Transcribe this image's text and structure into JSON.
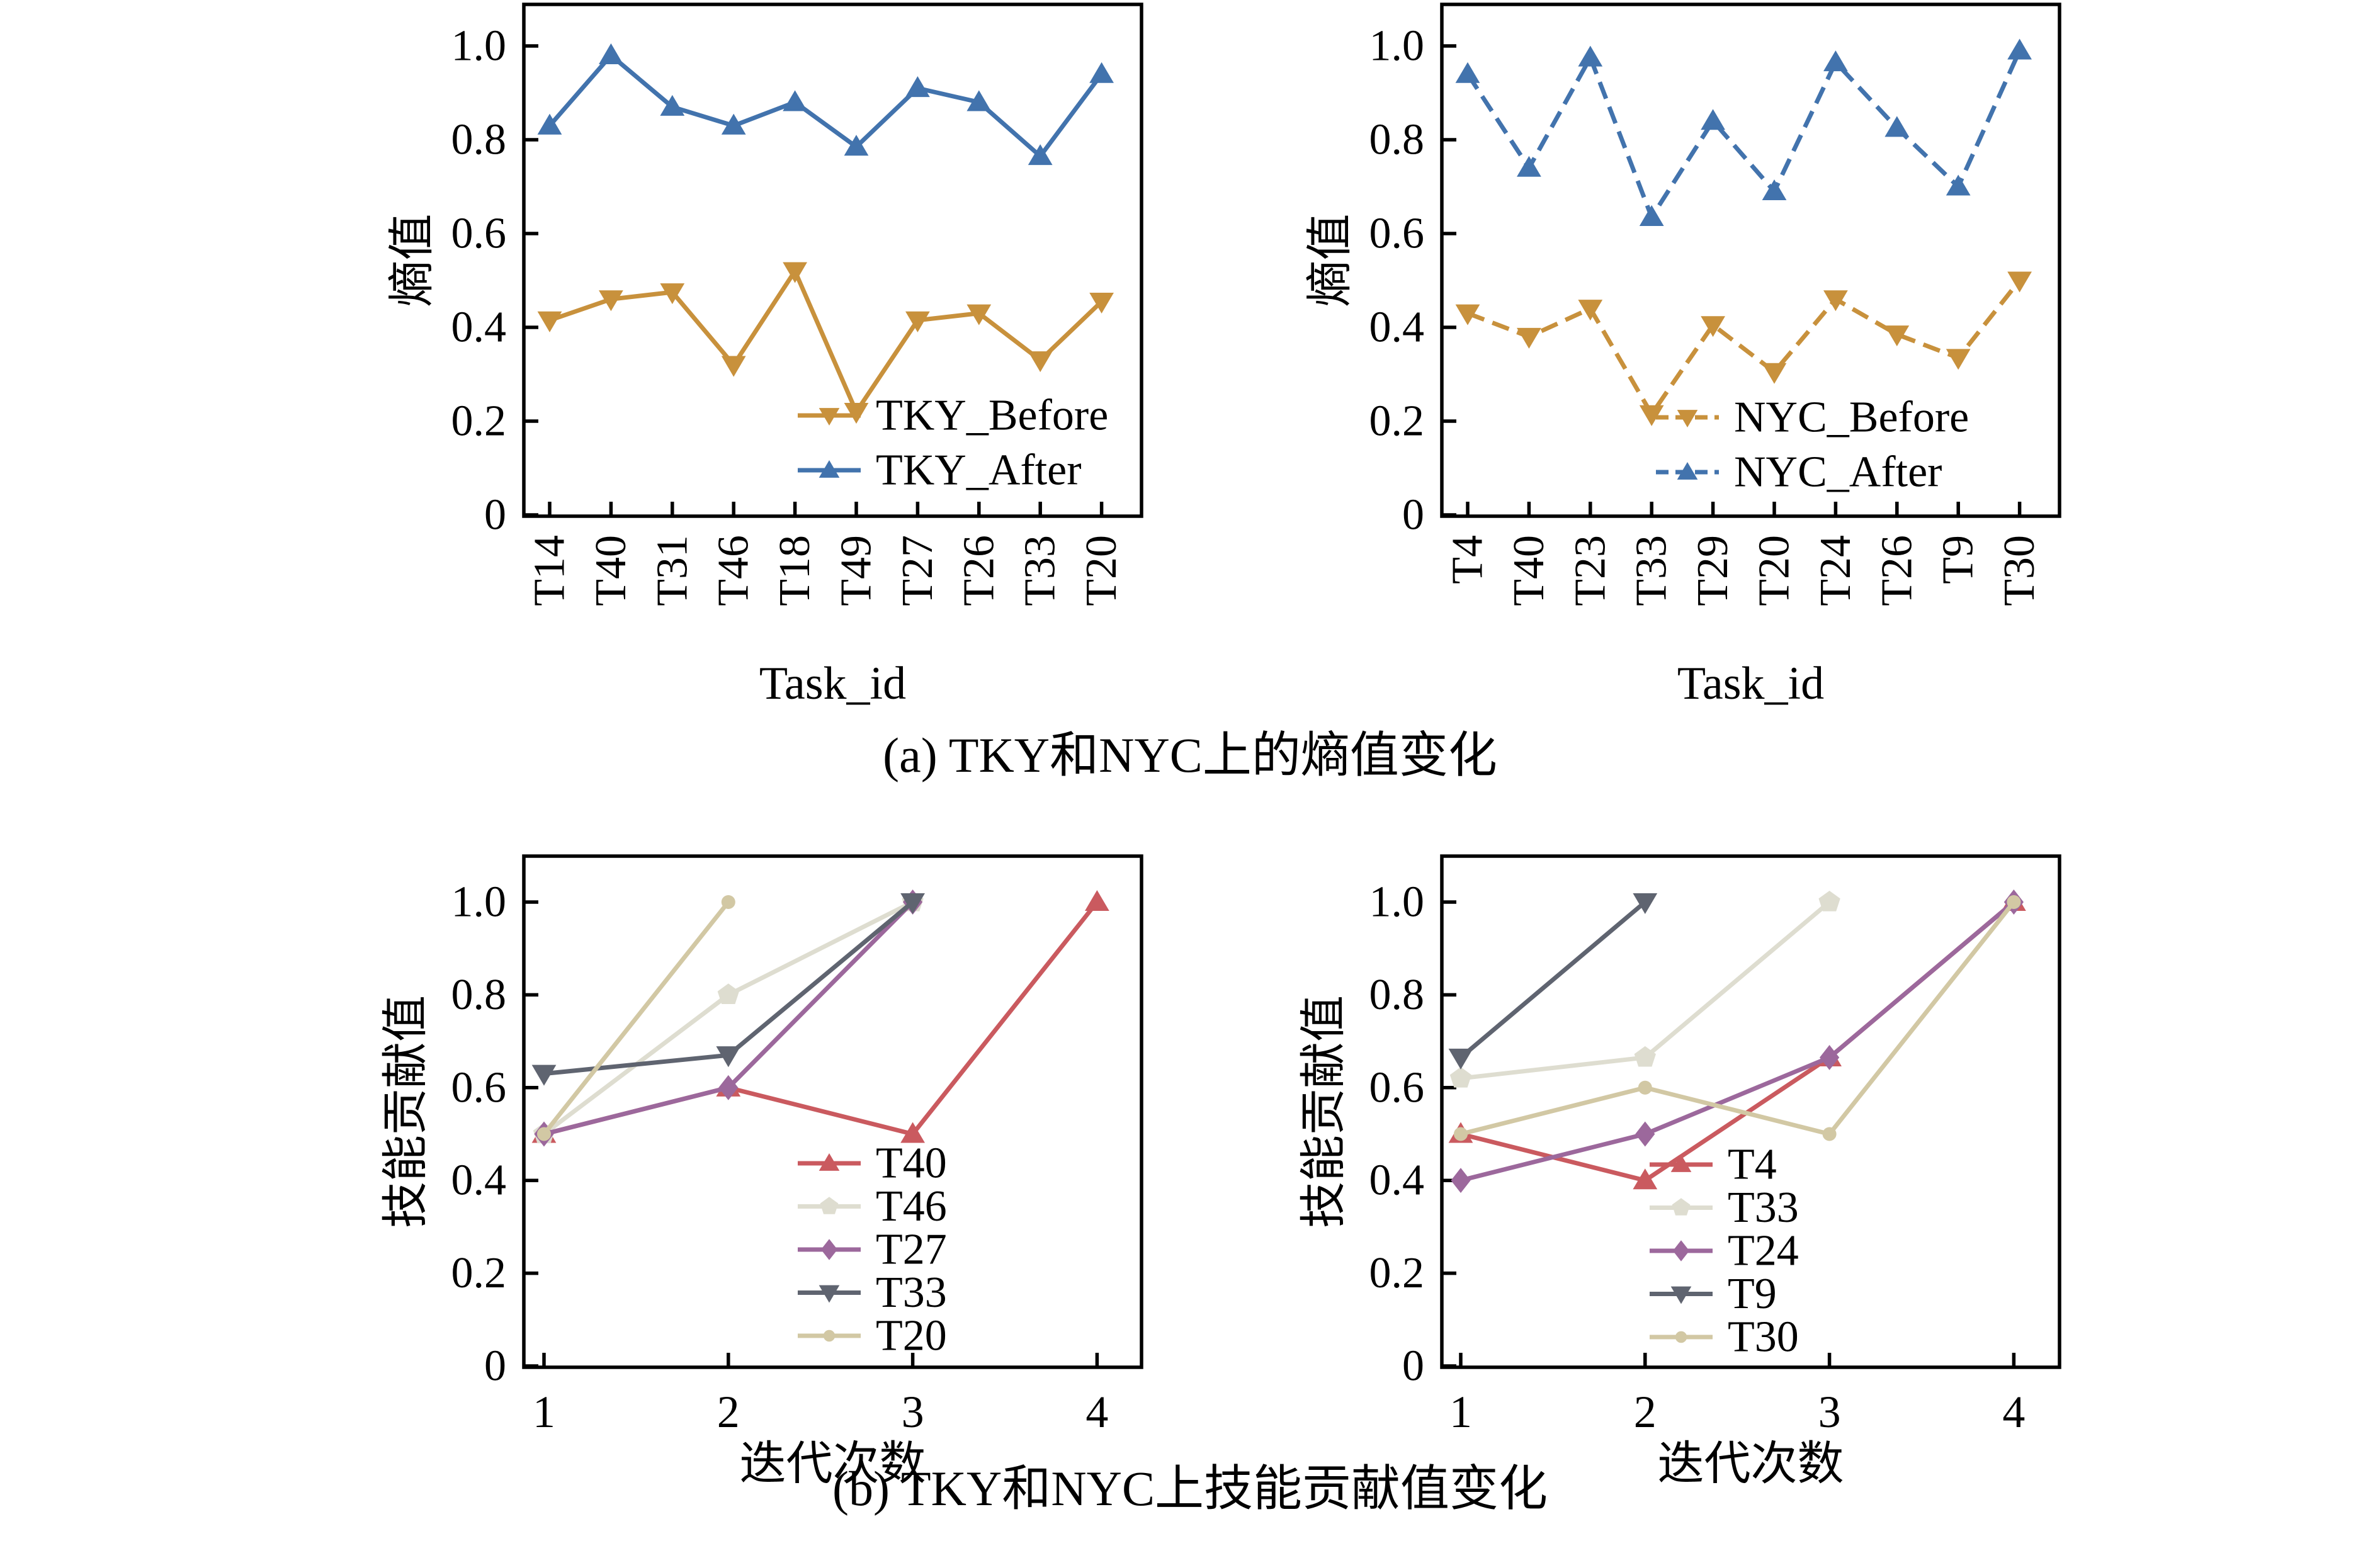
{
  "captions": {
    "a": "(a) TKY和NYC上的熵值变化",
    "b": "(b) TKY和NYC上技能贡献值变化"
  },
  "chart_data": [
    {
      "id": "tky-entropy",
      "type": "line",
      "xlabel": "Task_id",
      "ylabel": "熵值",
      "ylim": [
        0,
        1.09
      ],
      "yticks": [
        0,
        0.2,
        0.4,
        0.6,
        0.8,
        1.0
      ],
      "ytick_labels": [
        "0",
        "0.2",
        "0.4",
        "0.6",
        "0.8",
        "1.0"
      ],
      "categories": [
        "T14",
        "T40",
        "T31",
        "T46",
        "T18",
        "T49",
        "T27",
        "T26",
        "T33",
        "T20"
      ],
      "legend_position": "lower right",
      "grid": false,
      "series": [
        {
          "name": "TKY_Before",
          "color": "#c8913c",
          "marker": "triangle-down",
          "dashed": false,
          "values": [
            0.415,
            0.46,
            0.475,
            0.32,
            0.52,
            0.22,
            0.415,
            0.43,
            0.33,
            0.455
          ]
        },
        {
          "name": "TKY_After",
          "color": "#4273ad",
          "marker": "triangle-up",
          "dashed": false,
          "values": [
            0.83,
            0.98,
            0.87,
            0.83,
            0.88,
            0.785,
            0.91,
            0.88,
            0.765,
            0.94
          ]
        }
      ]
    },
    {
      "id": "nyc-entropy",
      "type": "line",
      "xlabel": "Task_id",
      "ylabel": "熵值",
      "ylim": [
        0,
        1.09
      ],
      "yticks": [
        0,
        0.2,
        0.4,
        0.6,
        0.8,
        1.0
      ],
      "ytick_labels": [
        "0",
        "0.2",
        "0.4",
        "0.6",
        "0.8",
        "1.0"
      ],
      "categories": [
        "T4",
        "T40",
        "T23",
        "T33",
        "T29",
        "T20",
        "T24",
        "T26",
        "T9",
        "T30"
      ],
      "legend_position": "lower right",
      "grid": false,
      "series": [
        {
          "name": "NYC_Before",
          "color": "#c8913c",
          "marker": "triangle-down",
          "dashed": true,
          "values": [
            0.43,
            0.38,
            0.44,
            0.215,
            0.405,
            0.305,
            0.46,
            0.385,
            0.335,
            0.5
          ]
        },
        {
          "name": "NYC_After",
          "color": "#4273ad",
          "marker": "triangle-up",
          "dashed": true,
          "values": [
            0.94,
            0.74,
            0.975,
            0.635,
            0.84,
            0.69,
            0.965,
            0.825,
            0.7,
            0.99
          ]
        }
      ]
    },
    {
      "id": "tky-skill",
      "type": "line",
      "xlabel": "迭代次数",
      "ylabel": "技能贡献值",
      "ylim": [
        0,
        1.1
      ],
      "yticks": [
        0,
        0.2,
        0.4,
        0.6,
        0.8,
        1.0
      ],
      "ytick_labels": [
        "0",
        "0.2",
        "0.4",
        "0.6",
        "0.8",
        "1.0"
      ],
      "xticks": [
        1,
        2,
        3,
        4
      ],
      "legend_position": "lower right",
      "grid": false,
      "series": [
        {
          "name": "T40",
          "color": "#ca5a5f",
          "marker": "triangle-up",
          "dashed": false,
          "points": [
            [
              1,
              0.5
            ],
            [
              2,
              0.6
            ],
            [
              3,
              0.5
            ],
            [
              4,
              1.0
            ]
          ]
        },
        {
          "name": "T46",
          "color": "#deddd0",
          "marker": "pentagon",
          "dashed": false,
          "points": [
            [
              1,
              0.5
            ],
            [
              2,
              0.8
            ],
            [
              3,
              1.0
            ]
          ]
        },
        {
          "name": "T27",
          "color": "#9c689c",
          "marker": "diamond",
          "dashed": false,
          "points": [
            [
              1,
              0.5
            ],
            [
              2,
              0.6
            ],
            [
              3,
              1.0
            ]
          ]
        },
        {
          "name": "T33",
          "color": "#5f6470",
          "marker": "triangle-down",
          "dashed": false,
          "points": [
            [
              1,
              0.63
            ],
            [
              2,
              0.67
            ],
            [
              3,
              1.0
            ]
          ]
        },
        {
          "name": "T20",
          "color": "#d2c8a4",
          "marker": "circle",
          "dashed": false,
          "points": [
            [
              1,
              0.5
            ],
            [
              2,
              1.0
            ]
          ]
        }
      ]
    },
    {
      "id": "nyc-skill",
      "type": "line",
      "xlabel": "迭代次数",
      "ylabel": "技能贡献值",
      "ylim": [
        0,
        1.1
      ],
      "yticks": [
        0,
        0.2,
        0.4,
        0.6,
        0.8,
        1.0
      ],
      "ytick_labels": [
        "0",
        "0.2",
        "0.4",
        "0.6",
        "0.8",
        "1.0"
      ],
      "xticks": [
        1,
        2,
        3,
        4
      ],
      "legend_position": "lower right",
      "grid": false,
      "series": [
        {
          "name": "T4",
          "color": "#ca5a5f",
          "marker": "triangle-up",
          "dashed": false,
          "points": [
            [
              1,
              0.5
            ],
            [
              2,
              0.4
            ],
            [
              3,
              0.665
            ],
            [
              4,
              1.0
            ]
          ]
        },
        {
          "name": "T33",
          "color": "#deddd0",
          "marker": "pentagon",
          "dashed": false,
          "points": [
            [
              1,
              0.62
            ],
            [
              2,
              0.665
            ],
            [
              3,
              1.0
            ]
          ]
        },
        {
          "name": "T24",
          "color": "#9c689c",
          "marker": "diamond",
          "dashed": false,
          "points": [
            [
              1,
              0.4
            ],
            [
              2,
              0.5
            ],
            [
              3,
              0.665
            ],
            [
              4,
              1.0
            ]
          ]
        },
        {
          "name": "T9",
          "color": "#5f6470",
          "marker": "triangle-down",
          "dashed": false,
          "points": [
            [
              1,
              0.665
            ],
            [
              2,
              1.0
            ]
          ]
        },
        {
          "name": "T30",
          "color": "#d2c8a4",
          "marker": "circle",
          "dashed": false,
          "points": [
            [
              1,
              0.5
            ],
            [
              2,
              0.6
            ],
            [
              3,
              0.5
            ],
            [
              4,
              1.0
            ]
          ]
        }
      ]
    }
  ]
}
